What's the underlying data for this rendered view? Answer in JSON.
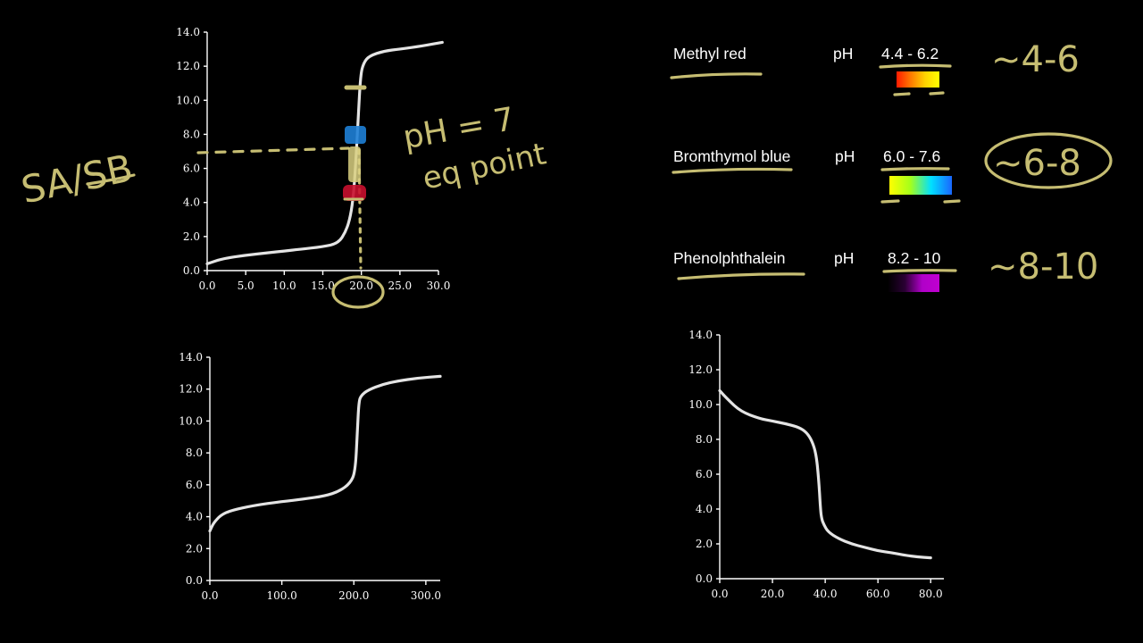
{
  "chart_data": [
    {
      "id": "top",
      "type": "line",
      "title": "",
      "xlabel": "",
      "ylabel": "",
      "xlim": [
        0,
        30
      ],
      "ylim": [
        0,
        14
      ],
      "x_ticks": [
        "0.0",
        "5.0",
        "10.0",
        "15.0",
        "20.0",
        "25.0",
        "30.0"
      ],
      "y_ticks": [
        "0.0",
        "2.0",
        "4.0",
        "6.0",
        "8.0",
        "10.0",
        "12.0",
        "14.0"
      ],
      "grid": false,
      "series": [
        {
          "x": [
            0,
            2,
            5,
            8,
            10,
            12,
            15,
            17,
            18,
            18.6,
            19.0,
            19.3,
            19.6,
            19.9,
            20.3,
            21,
            23,
            25,
            28,
            30.5
          ],
          "y": [
            0.4,
            0.7,
            0.9,
            1.05,
            1.15,
            1.25,
            1.4,
            1.6,
            2.3,
            3.2,
            4.5,
            6.5,
            9.0,
            11.5,
            12.2,
            12.6,
            12.9,
            13.0,
            13.2,
            13.4
          ]
        }
      ]
    },
    {
      "id": "bottom-left",
      "type": "line",
      "title": "",
      "xlabel": "",
      "ylabel": "",
      "xlim": [
        0,
        320
      ],
      "ylim": [
        0,
        14
      ],
      "x_ticks": [
        "0.0",
        "100.0",
        "200.0",
        "300.0"
      ],
      "y_ticks": [
        "0.0",
        "2.0",
        "4.0",
        "6.0",
        "8.0",
        "10.0",
        "12.0",
        "14.0"
      ],
      "grid": false,
      "series": [
        {
          "x": [
            0,
            5,
            15,
            30,
            60,
            100,
            130,
            160,
            180,
            195,
            202,
            205,
            207,
            210,
            220,
            240,
            260,
            290,
            320
          ],
          "y": [
            3.1,
            3.6,
            4.1,
            4.4,
            4.7,
            4.95,
            5.1,
            5.3,
            5.6,
            6.1,
            6.8,
            9.5,
            11.2,
            11.6,
            11.95,
            12.3,
            12.5,
            12.7,
            12.8
          ]
        }
      ]
    },
    {
      "id": "bottom-right",
      "type": "line",
      "title": "",
      "xlabel": "",
      "ylabel": "",
      "xlim": [
        0,
        85
      ],
      "ylim": [
        0,
        14
      ],
      "x_ticks": [
        "0.0",
        "20.0",
        "40.0",
        "60.0",
        "80.0"
      ],
      "y_ticks": [
        "0.0",
        "2.0",
        "4.0",
        "6.0",
        "8.0",
        "10.0",
        "12.0",
        "14.0"
      ],
      "grid": false,
      "series": [
        {
          "x": [
            0,
            3,
            8,
            15,
            20,
            25,
            30,
            33,
            35,
            36.5,
            37.5,
            38.2,
            38.7,
            39.5,
            41,
            45,
            50,
            55,
            60,
            65,
            70,
            75,
            80
          ],
          "y": [
            10.8,
            10.3,
            9.6,
            9.2,
            9.05,
            8.9,
            8.7,
            8.4,
            7.9,
            7.2,
            5.8,
            4.0,
            3.4,
            3.1,
            2.7,
            2.3,
            2.0,
            1.8,
            1.6,
            1.5,
            1.35,
            1.25,
            1.2
          ]
        }
      ]
    }
  ],
  "indicators": [
    {
      "name": "Methyl red",
      "ph_label": "pH",
      "range": "4.4 - 6.2",
      "note": "~4-6",
      "gradient": [
        "#ff1a00",
        "#ff7a00",
        "#ffd200",
        "#ffff00"
      ]
    },
    {
      "name": "Bromthymol blue",
      "ph_label": "pH",
      "range": "6.0 - 7.6",
      "note": "~6-8",
      "gradient": [
        "#ffff00",
        "#a6ff1a",
        "#00e0ff",
        "#1a66ff"
      ]
    },
    {
      "name": "Phenolphthalein",
      "ph_label": "pH",
      "range": "8.2 - 10",
      "note": "~8-10",
      "gradient": [
        "#000000",
        "#2a0033",
        "#b000c8",
        "#c000d0"
      ]
    }
  ],
  "annotations": {
    "sa_sb": "SA/SB",
    "ph_eq": "pH = 7",
    "eq_point": "eq point"
  },
  "colors": {
    "background": "#000000",
    "curve": "#e4e4e4",
    "handwriting": "#c6bd72",
    "marker_blue": "#1e7fd6",
    "marker_red": "#c8102e",
    "marker_yellow": "#e8e08a"
  }
}
